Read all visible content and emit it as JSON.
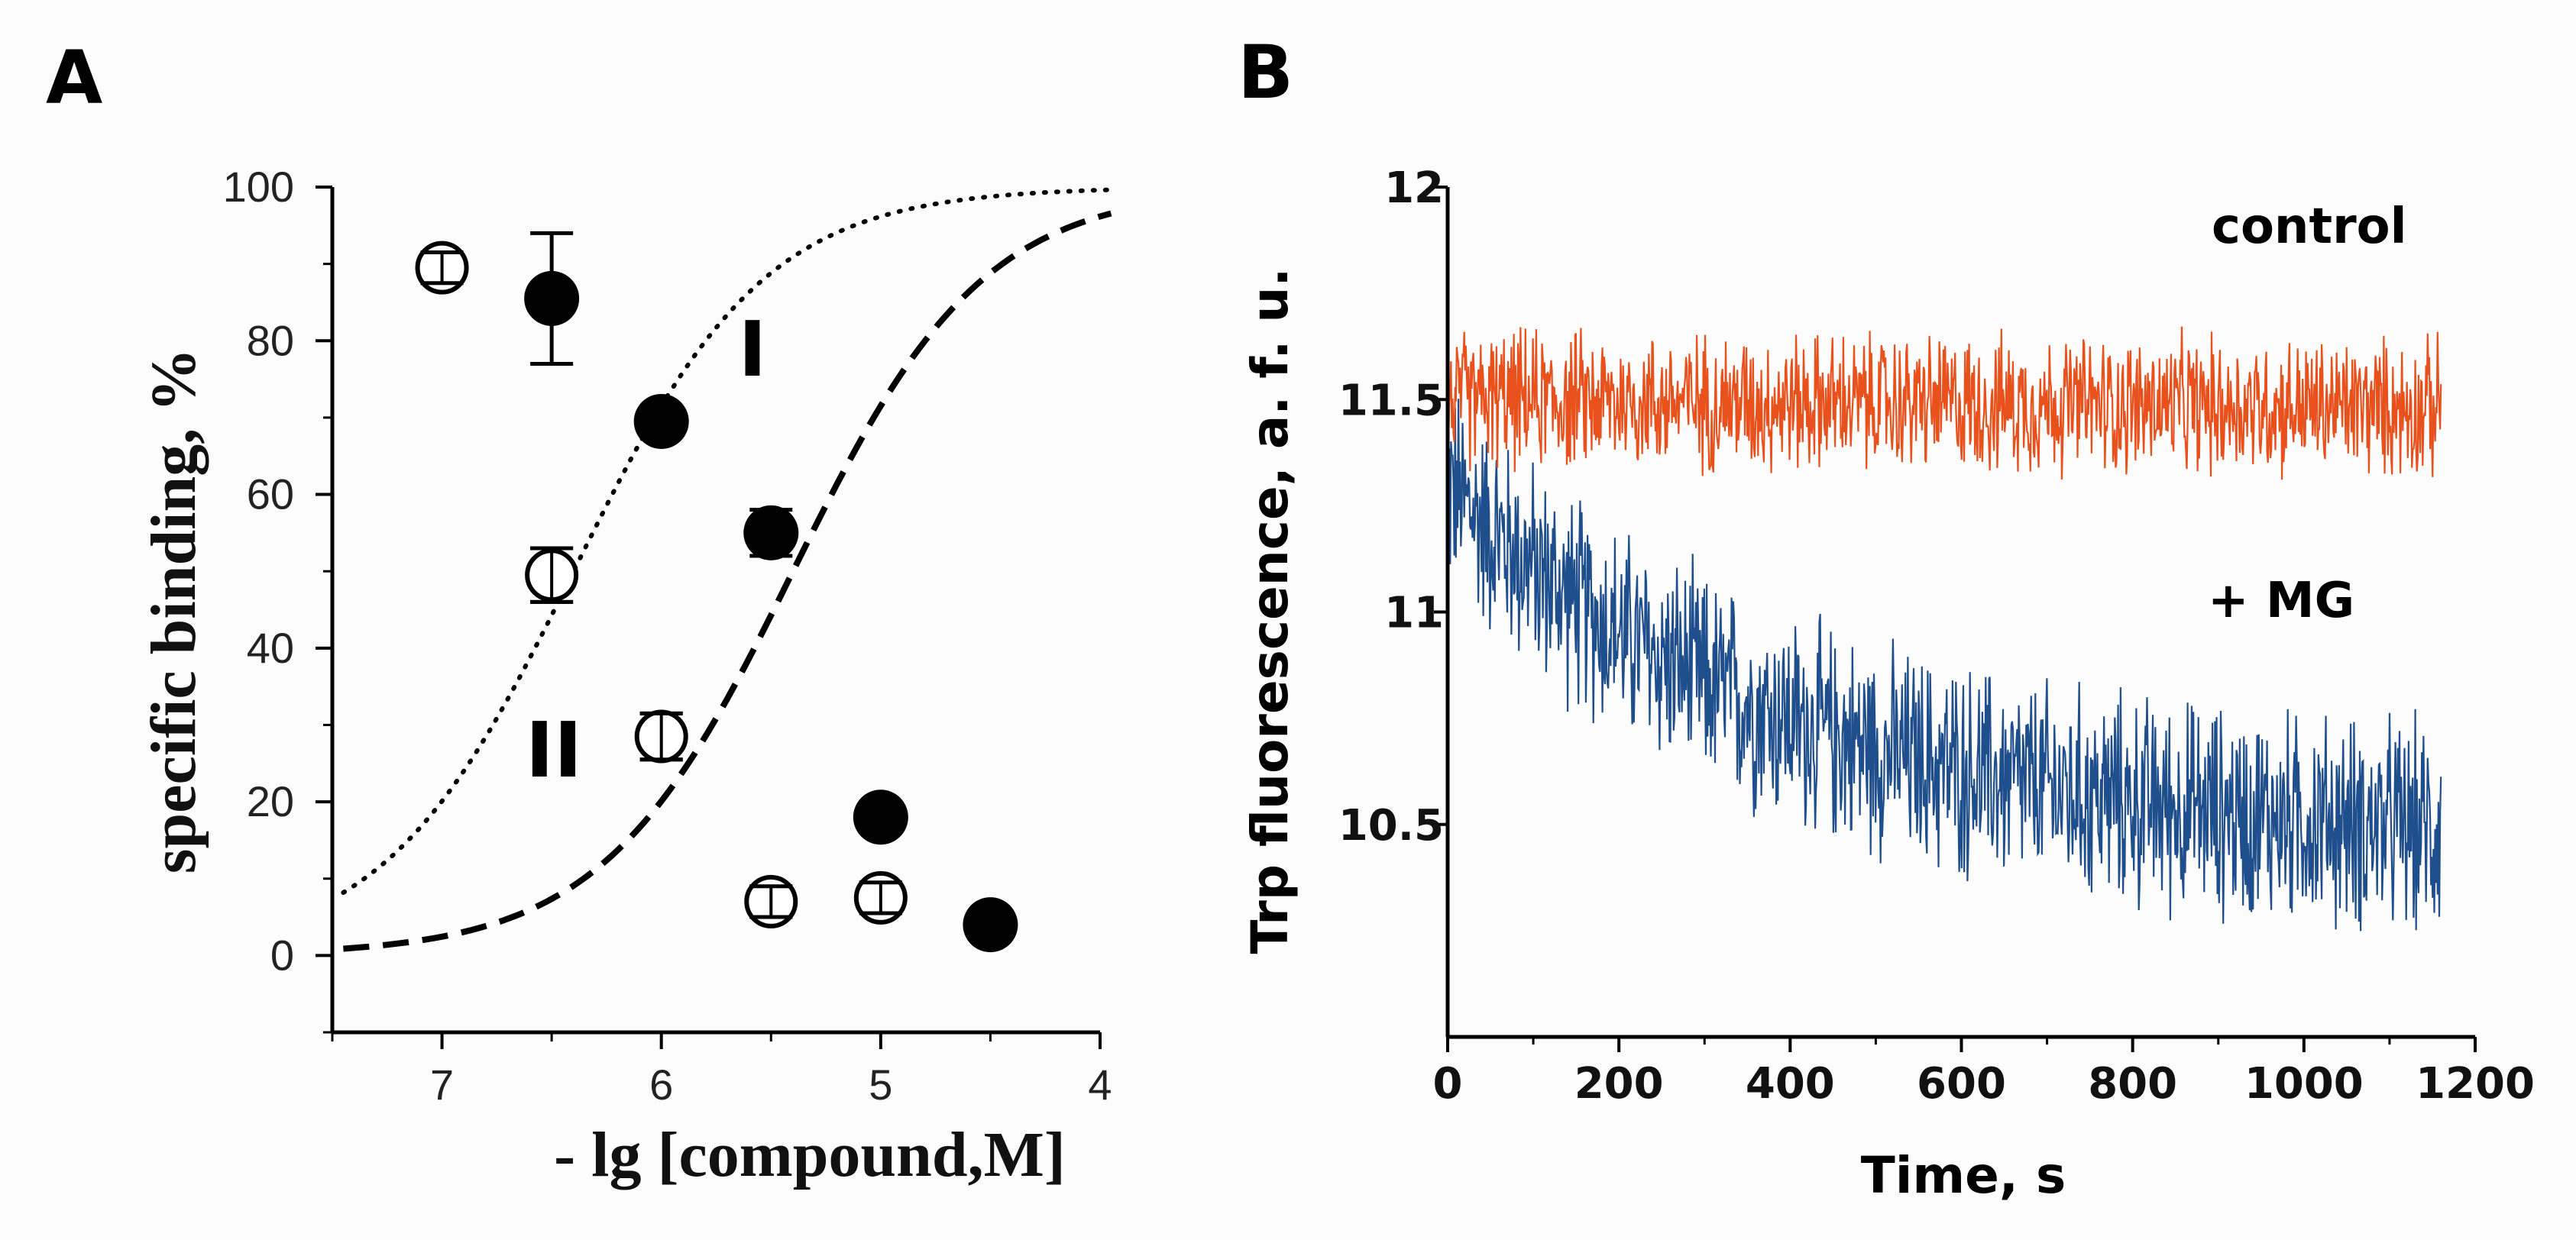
{
  "chart_data": [
    {
      "panel": "A",
      "type": "scatter",
      "xlabel": "- lg [compound,M]",
      "ylabel": "specific binding, %",
      "xlim": [
        7.5,
        4
      ],
      "ylim": [
        -10,
        100
      ],
      "x_ticks": [
        "7",
        "6",
        "5",
        "4"
      ],
      "y_ticks": [
        "0",
        "20",
        "40",
        "60",
        "80",
        "100"
      ],
      "series": [
        {
          "name": "I",
          "marker": "filled-circle",
          "line": "dashed",
          "points": [
            {
              "x": 6.5,
              "y": 85.5,
              "err": 8.5
            },
            {
              "x": 6.0,
              "y": 69.5,
              "err": 0
            },
            {
              "x": 5.5,
              "y": 55.0,
              "err": 3.0
            },
            {
              "x": 5.0,
              "y": 18.0,
              "err": 0
            },
            {
              "x": 4.5,
              "y": 4.0,
              "err": 0
            }
          ],
          "fit": {
            "ic50_neglog": 5.4,
            "hill": 1.0,
            "top": 100,
            "bottom": 0
          }
        },
        {
          "name": "II",
          "marker": "open-circle",
          "line": "dotted",
          "points": [
            {
              "x": 7.0,
              "y": 89.5,
              "err": 2.0
            },
            {
              "x": 6.5,
              "y": 49.5,
              "err": 3.5
            },
            {
              "x": 6.0,
              "y": 28.5,
              "err": 3.0
            },
            {
              "x": 5.5,
              "y": 7.0,
              "err": 2.0
            },
            {
              "x": 5.0,
              "y": 7.5,
              "err": 2.0
            }
          ],
          "fit": {
            "ic50_neglog": 6.4,
            "hill": 1.0,
            "top": 100,
            "bottom": 0
          }
        }
      ],
      "curve_labels": [
        "I",
        "II"
      ]
    },
    {
      "panel": "B",
      "type": "line",
      "xlabel": "Time, s",
      "ylabel": "Trp fluorescence, a. f. u.",
      "xlim": [
        0,
        1200
      ],
      "ylim": [
        10,
        12
      ],
      "x_ticks": [
        "0",
        "200",
        "400",
        "600",
        "800",
        "1000",
        "1200"
      ],
      "y_ticks": [
        "10.5",
        "11",
        "11.5",
        "12"
      ],
      "series": [
        {
          "name": "control",
          "color": "#e8501c",
          "t_end": 1160,
          "mean_start": 11.5,
          "mean_end": 11.48,
          "noise_amplitude": 0.13
        },
        {
          "name": "+ MG",
          "color": "#1f4e8c",
          "t_end": 1160,
          "mean_start": 11.3,
          "mean_end": 10.45,
          "noise_amplitude": 0.2
        }
      ],
      "annotations": [
        "control",
        "+ MG"
      ]
    }
  ]
}
